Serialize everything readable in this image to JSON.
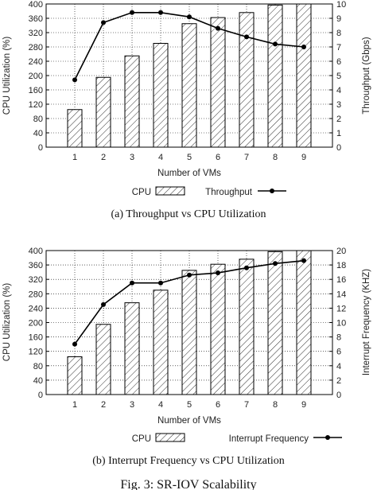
{
  "chart_data": [
    {
      "type": "bar",
      "caption": "(a) Throughput vs CPU Utilization",
      "xlabel": "Number of VMs",
      "ylabel": "CPU Utilization (%)",
      "y2label": "Throughput (Gbps)",
      "categories": [
        "1",
        "2",
        "3",
        "4",
        "5",
        "6",
        "7",
        "8",
        "9"
      ],
      "ylim": [
        0,
        400
      ],
      "yticks": [
        "0",
        "40",
        "80",
        "120",
        "160",
        "200",
        "240",
        "280",
        "320",
        "360",
        "400"
      ],
      "y2lim": [
        0,
        10
      ],
      "y2ticks": [
        "0",
        "1",
        "2",
        "3",
        "4",
        "5",
        "6",
        "7",
        "8",
        "9",
        "10"
      ],
      "grid": true,
      "legend_position": "bottom-center",
      "series": [
        {
          "name": "CPU",
          "kind": "bar",
          "axis": "left",
          "values": [
            105,
            195,
            255,
            290,
            345,
            362,
            376,
            397,
            400
          ]
        },
        {
          "name": "Throughput",
          "kind": "line",
          "axis": "right",
          "values": [
            4.7,
            8.7,
            9.4,
            9.4,
            9.1,
            8.3,
            7.7,
            7.2,
            7.0
          ]
        }
      ]
    },
    {
      "type": "bar",
      "caption": "(b) Interrupt Frequency vs CPU Utilization",
      "xlabel": "Number of VMs",
      "ylabel": "CPU Utilization (%)",
      "y2label": "Interrupt Frequency (KHZ)",
      "categories": [
        "1",
        "2",
        "3",
        "4",
        "5",
        "6",
        "7",
        "8",
        "9"
      ],
      "ylim": [
        0,
        400
      ],
      "yticks": [
        "0",
        "40",
        "80",
        "120",
        "160",
        "200",
        "240",
        "280",
        "320",
        "360",
        "400"
      ],
      "y2lim": [
        0,
        20
      ],
      "y2ticks": [
        "0",
        "2",
        "4",
        "6",
        "8",
        "10",
        "12",
        "14",
        "16",
        "18",
        "20"
      ],
      "grid": true,
      "legend_position": "bottom-center",
      "series": [
        {
          "name": "CPU",
          "kind": "bar",
          "axis": "left",
          "values": [
            105,
            195,
            255,
            290,
            345,
            362,
            376,
            397,
            400
          ]
        },
        {
          "name": "Interrupt Frequency",
          "kind": "line",
          "axis": "right",
          "values": [
            7.0,
            12.5,
            15.5,
            15.5,
            16.6,
            16.9,
            17.6,
            18.2,
            18.6
          ]
        }
      ]
    }
  ],
  "figure_caption": "Fig. 3: SR-IOV Scalability",
  "colors": {
    "line": "#000000",
    "bar_stroke": "#000000",
    "grid": "#000000",
    "hatch": "#333333"
  }
}
